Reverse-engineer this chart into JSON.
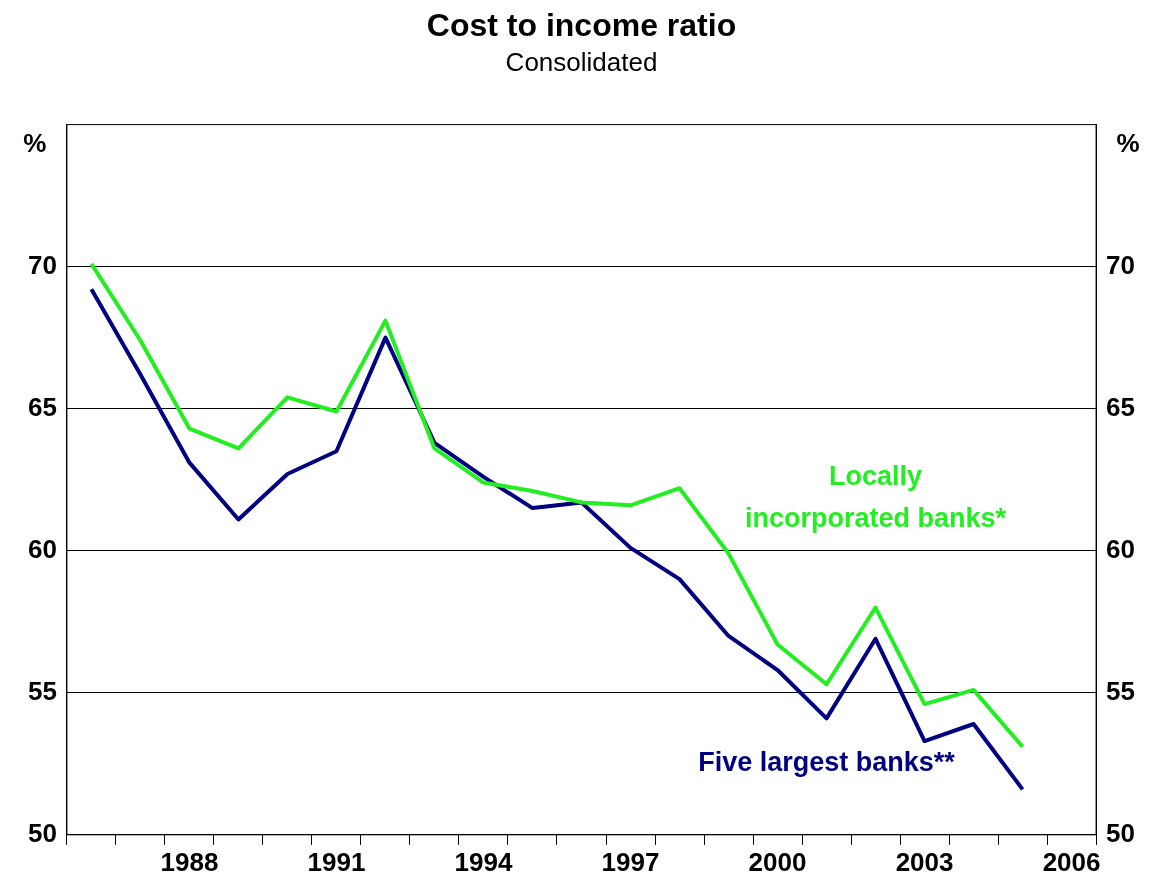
{
  "chart_data": {
    "type": "line",
    "title": "Cost to income ratio",
    "subtitle": "Consolidated",
    "ylabel": "%",
    "y2label": "%",
    "categories": [
      null,
      null,
      "1988",
      null,
      null,
      "1991",
      null,
      null,
      "1994",
      null,
      null,
      "1997",
      null,
      null,
      "2000",
      null,
      null,
      "2003",
      null,
      null,
      "2006"
    ],
    "series": [
      {
        "name": "Locally incorporated banks*",
        "color": "#22ee22",
        "values": [
          70.1,
          67.4,
          64.3,
          63.6,
          65.4,
          64.9,
          68.1,
          63.6,
          62.4,
          62.1,
          61.7,
          61.6,
          62.2,
          59.9,
          56.7,
          55.3,
          58.0,
          54.6,
          55.1,
          53.1,
          null
        ]
      },
      {
        "name": "Five largest banks**",
        "color": "#000080",
        "values": [
          69.2,
          66.2,
          63.1,
          61.1,
          62.7,
          63.5,
          67.5,
          63.8,
          62.6,
          61.5,
          61.7,
          60.1,
          59.0,
          57.0,
          55.8,
          54.1,
          56.9,
          53.3,
          53.9,
          51.6,
          null
        ]
      }
    ],
    "ylim": [
      50,
      75
    ],
    "yticks": [
      50,
      55,
      60,
      65,
      70
    ],
    "y2lim": [
      50,
      75
    ],
    "y2ticks": [
      50,
      55,
      60,
      65,
      70
    ],
    "grid": "y",
    "legend": false,
    "marker": "none",
    "line_style": "solid"
  }
}
